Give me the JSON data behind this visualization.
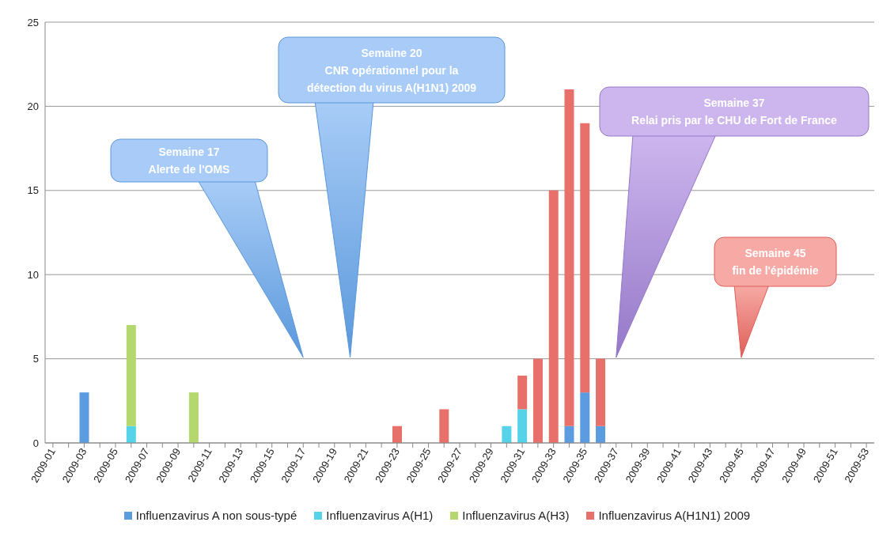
{
  "chart_data": {
    "type": "bar",
    "stacked": true,
    "categories": [
      "2009-01",
      null,
      "2009-03",
      null,
      "2009-05",
      null,
      "2009-07",
      null,
      "2009-09",
      null,
      "2009-11",
      null,
      "2009-13",
      null,
      "2009-15",
      null,
      "2009-17",
      null,
      "2009-19",
      null,
      "2009-21",
      null,
      "2009-23",
      null,
      "2009-25",
      null,
      "2009-27",
      null,
      "2009-29",
      null,
      "2009-31",
      null,
      "2009-33",
      null,
      "2009-35",
      null,
      "2009-37",
      null,
      "2009-39",
      null,
      "2009-41",
      null,
      "2009-43",
      null,
      "2009-45",
      null,
      "2009-47",
      null,
      "2009-49",
      null,
      "2009-51",
      null,
      "2009-53"
    ],
    "series": [
      {
        "name": "Influenzavirus A non sous-typé",
        "color": "#5b9be0",
        "values": [
          null,
          null,
          3,
          null,
          null,
          null,
          null,
          null,
          null,
          null,
          null,
          null,
          null,
          null,
          null,
          null,
          null,
          null,
          null,
          null,
          null,
          null,
          null,
          null,
          null,
          null,
          null,
          null,
          null,
          null,
          null,
          null,
          null,
          1,
          3,
          1,
          null,
          null,
          null,
          null,
          null,
          null,
          null,
          null,
          null,
          null,
          null,
          null,
          null,
          null,
          null,
          null,
          null
        ]
      },
      {
        "name": "Influenzavirus A(H1)",
        "color": "#56d3e8",
        "values": [
          null,
          null,
          null,
          null,
          null,
          1,
          null,
          null,
          null,
          null,
          null,
          null,
          null,
          null,
          null,
          null,
          null,
          null,
          null,
          null,
          null,
          null,
          null,
          null,
          null,
          null,
          null,
          null,
          null,
          1,
          2,
          null,
          null,
          null,
          null,
          null,
          null,
          null,
          null,
          null,
          null,
          null,
          null,
          null,
          null,
          null,
          null,
          null,
          null,
          null,
          null,
          null,
          null
        ]
      },
      {
        "name": "Influenzavirus A(H3)",
        "color": "#b5d86e",
        "values": [
          null,
          null,
          null,
          null,
          null,
          6,
          null,
          null,
          null,
          3,
          null,
          null,
          null,
          null,
          null,
          null,
          null,
          null,
          null,
          null,
          null,
          null,
          null,
          null,
          null,
          null,
          null,
          null,
          null,
          null,
          null,
          null,
          null,
          null,
          null,
          null,
          null,
          null,
          null,
          null,
          null,
          null,
          null,
          null,
          null,
          null,
          null,
          null,
          null,
          null,
          null,
          null,
          null
        ]
      },
      {
        "name": "Influenzavirus A(H1N1) 2009",
        "color": "#e8706a",
        "values": [
          null,
          null,
          null,
          null,
          null,
          null,
          null,
          null,
          null,
          null,
          null,
          null,
          null,
          null,
          null,
          null,
          null,
          null,
          null,
          null,
          null,
          null,
          1,
          null,
          null,
          2,
          null,
          null,
          null,
          null,
          2,
          5,
          15,
          20,
          16,
          4,
          null,
          null,
          null,
          null,
          null,
          null,
          null,
          null,
          null,
          null,
          null,
          null,
          null,
          null,
          null,
          null,
          null
        ]
      }
    ],
    "ylim": [
      0,
      25
    ],
    "yticks": [
      0,
      5,
      10,
      15,
      20,
      25
    ],
    "grid": "y",
    "legend": "bottom",
    "annotations": [
      "Semaine 17\nAlerte de l'OMS",
      "Semaine 20\nCNR opérationnel pour la\ndétection du virus A(H1N1) 2009",
      "Semaine 37\nRelai pris par le CHU de Fort de France",
      "Semaine 45\nfin de l'épidémie"
    ]
  }
}
